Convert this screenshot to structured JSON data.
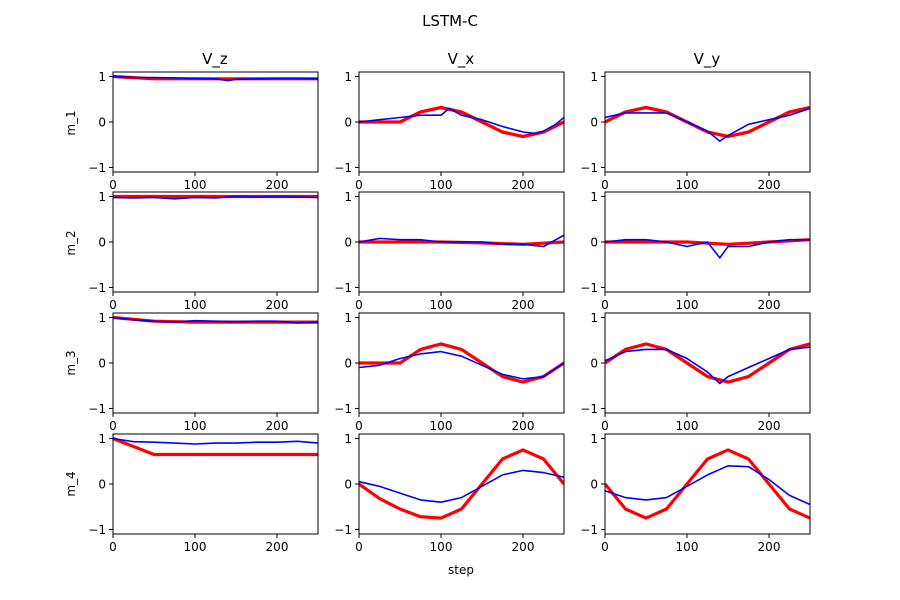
{
  "chart_data": {
    "type": "line",
    "title": "LSTM-C",
    "column_titles": [
      "V_z",
      "V_x",
      "V_y"
    ],
    "row_labels": [
      "m_1",
      "m_2",
      "m_3",
      "m_4"
    ],
    "xlabel": "step",
    "xlim": [
      0,
      250
    ],
    "ylim": [
      -1.1,
      1.1
    ],
    "xticks": [
      0,
      100,
      200
    ],
    "yticks": [
      -1,
      0,
      1
    ],
    "colors": {
      "reference": "#ff0000",
      "prediction": "#0000ff"
    },
    "series_legend": "none",
    "panels": [
      {
        "row": "m_1",
        "col": "V_z",
        "reference": {
          "x": [
            0,
            50,
            100,
            150,
            200,
            250
          ],
          "y": [
            1.0,
            0.95,
            0.95,
            0.95,
            0.95,
            0.95
          ]
        },
        "prediction": {
          "x": [
            0,
            25,
            50,
            75,
            100,
            125,
            140,
            150,
            175,
            200,
            225,
            250
          ],
          "y": [
            1.0,
            0.98,
            0.98,
            0.97,
            0.96,
            0.95,
            0.91,
            0.94,
            0.95,
            0.96,
            0.96,
            0.95
          ]
        }
      },
      {
        "row": "m_1",
        "col": "V_x",
        "reference": {
          "x": [
            0,
            50,
            75,
            100,
            125,
            150,
            175,
            200,
            225,
            250
          ],
          "y": [
            0.0,
            0.0,
            0.22,
            0.32,
            0.22,
            0.0,
            -0.22,
            -0.32,
            -0.22,
            0.0
          ]
        },
        "prediction": {
          "x": [
            0,
            25,
            50,
            75,
            100,
            110,
            125,
            150,
            175,
            200,
            215,
            225,
            240,
            250
          ],
          "y": [
            0.0,
            0.05,
            0.1,
            0.15,
            0.15,
            0.3,
            0.15,
            0.05,
            -0.1,
            -0.22,
            -0.25,
            -0.2,
            -0.05,
            0.1
          ]
        }
      },
      {
        "row": "m_1",
        "col": "V_y",
        "reference": {
          "x": [
            0,
            25,
            50,
            75,
            100,
            125,
            150,
            175,
            200,
            225,
            250
          ],
          "y": [
            0.0,
            0.22,
            0.32,
            0.22,
            0.0,
            -0.22,
            -0.32,
            -0.22,
            0.0,
            0.22,
            0.32
          ]
        },
        "prediction": {
          "x": [
            0,
            25,
            50,
            75,
            100,
            125,
            140,
            150,
            175,
            200,
            225,
            250
          ],
          "y": [
            0.1,
            0.2,
            0.2,
            0.2,
            0.0,
            -0.2,
            -0.42,
            -0.3,
            -0.05,
            0.05,
            0.15,
            0.3
          ]
        }
      },
      {
        "row": "m_2",
        "col": "V_z",
        "reference": {
          "x": [
            0,
            50,
            100,
            150,
            200,
            250
          ],
          "y": [
            1.0,
            1.0,
            1.0,
            1.0,
            1.0,
            1.0
          ]
        },
        "prediction": {
          "x": [
            0,
            25,
            50,
            75,
            100,
            125,
            150,
            175,
            200,
            225,
            250
          ],
          "y": [
            0.98,
            0.97,
            0.98,
            0.95,
            0.98,
            0.97,
            1.0,
            0.99,
            1.0,
            0.99,
            0.98
          ]
        }
      },
      {
        "row": "m_2",
        "col": "V_x",
        "reference": {
          "x": [
            0,
            50,
            100,
            150,
            200,
            250
          ],
          "y": [
            0.0,
            0.0,
            0.0,
            -0.02,
            -0.05,
            0.0
          ]
        },
        "prediction": {
          "x": [
            0,
            25,
            50,
            75,
            100,
            125,
            150,
            175,
            200,
            225,
            250
          ],
          "y": [
            0.0,
            0.08,
            0.05,
            0.05,
            0.0,
            0.0,
            0.0,
            -0.05,
            -0.05,
            -0.1,
            0.15
          ]
        }
      },
      {
        "row": "m_2",
        "col": "V_y",
        "reference": {
          "x": [
            0,
            50,
            100,
            150,
            200,
            250
          ],
          "y": [
            0.0,
            0.0,
            0.0,
            -0.05,
            0.0,
            0.05
          ]
        },
        "prediction": {
          "x": [
            0,
            25,
            50,
            75,
            100,
            125,
            140,
            150,
            175,
            200,
            225,
            250
          ],
          "y": [
            0.0,
            0.05,
            0.05,
            0.0,
            -0.1,
            0.0,
            -0.35,
            -0.1,
            -0.1,
            0.0,
            0.05,
            0.05
          ]
        }
      },
      {
        "row": "m_3",
        "col": "V_z",
        "reference": {
          "x": [
            0,
            50,
            100,
            150,
            200,
            250
          ],
          "y": [
            1.0,
            0.92,
            0.9,
            0.9,
            0.9,
            0.9
          ]
        },
        "prediction": {
          "x": [
            0,
            25,
            50,
            75,
            100,
            125,
            150,
            175,
            200,
            225,
            250
          ],
          "y": [
            1.0,
            0.95,
            0.92,
            0.9,
            0.93,
            0.92,
            0.91,
            0.92,
            0.92,
            0.88,
            0.9
          ]
        }
      },
      {
        "row": "m_3",
        "col": "V_x",
        "reference": {
          "x": [
            0,
            50,
            75,
            100,
            125,
            150,
            175,
            200,
            225,
            250
          ],
          "y": [
            0.0,
            0.0,
            0.3,
            0.42,
            0.3,
            0.0,
            -0.3,
            -0.42,
            -0.3,
            0.0
          ]
        },
        "prediction": {
          "x": [
            0,
            25,
            50,
            75,
            100,
            125,
            150,
            175,
            200,
            225,
            250
          ],
          "y": [
            -0.1,
            -0.05,
            0.1,
            0.2,
            0.25,
            0.15,
            -0.05,
            -0.25,
            -0.35,
            -0.3,
            0.0
          ]
        }
      },
      {
        "row": "m_3",
        "col": "V_y",
        "reference": {
          "x": [
            0,
            25,
            50,
            75,
            100,
            125,
            150,
            175,
            200,
            225,
            250
          ],
          "y": [
            0.0,
            0.3,
            0.42,
            0.3,
            0.0,
            -0.3,
            -0.42,
            -0.3,
            0.0,
            0.3,
            0.42
          ]
        },
        "prediction": {
          "x": [
            0,
            25,
            50,
            75,
            100,
            125,
            140,
            150,
            175,
            200,
            225,
            250
          ],
          "y": [
            0.05,
            0.25,
            0.3,
            0.3,
            0.1,
            -0.2,
            -0.45,
            -0.3,
            -0.1,
            0.1,
            0.3,
            0.35
          ]
        }
      },
      {
        "row": "m_4",
        "col": "V_z",
        "reference": {
          "x": [
            0,
            50,
            100,
            150,
            200,
            250
          ],
          "y": [
            1.0,
            0.65,
            0.65,
            0.65,
            0.65,
            0.65
          ]
        },
        "prediction": {
          "x": [
            0,
            25,
            50,
            75,
            100,
            125,
            150,
            175,
            200,
            225,
            250
          ],
          "y": [
            1.0,
            0.93,
            0.92,
            0.9,
            0.88,
            0.9,
            0.9,
            0.92,
            0.92,
            0.94,
            0.9
          ]
        }
      },
      {
        "row": "m_4",
        "col": "V_x",
        "reference": {
          "x": [
            0,
            25,
            50,
            75,
            100,
            125,
            150,
            175,
            200,
            225,
            250
          ],
          "y": [
            0.0,
            -0.32,
            -0.55,
            -0.72,
            -0.75,
            -0.55,
            0.0,
            0.55,
            0.75,
            0.55,
            0.0
          ]
        },
        "prediction": {
          "x": [
            0,
            25,
            50,
            75,
            100,
            125,
            150,
            175,
            200,
            225,
            250
          ],
          "y": [
            0.05,
            -0.05,
            -0.2,
            -0.35,
            -0.4,
            -0.3,
            -0.05,
            0.2,
            0.3,
            0.25,
            0.15
          ]
        }
      },
      {
        "row": "m_4",
        "col": "V_y",
        "reference": {
          "x": [
            0,
            25,
            50,
            75,
            100,
            125,
            150,
            175,
            200,
            225,
            250
          ],
          "y": [
            0.0,
            -0.55,
            -0.75,
            -0.55,
            0.0,
            0.55,
            0.75,
            0.55,
            0.0,
            -0.55,
            -0.75
          ]
        },
        "prediction": {
          "x": [
            0,
            25,
            50,
            75,
            100,
            125,
            150,
            175,
            200,
            225,
            250
          ],
          "y": [
            -0.15,
            -0.3,
            -0.35,
            -0.3,
            -0.05,
            0.2,
            0.4,
            0.38,
            0.1,
            -0.25,
            -0.45
          ]
        }
      }
    ]
  }
}
